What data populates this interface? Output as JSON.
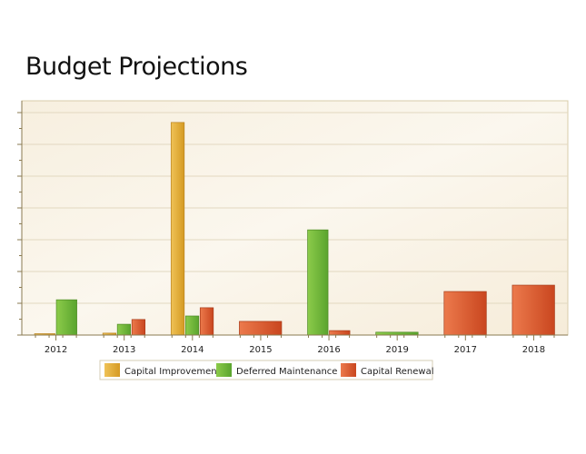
{
  "chart_data": {
    "type": "bar",
    "title": "Budget Projections",
    "xlabel": "",
    "ylabel": "",
    "ylim": [
      0,
      7.3
    ],
    "grid": true,
    "legend_position": "bottom",
    "categories": [
      "2012",
      "2013",
      "2014",
      "2015",
      "2016",
      "2019",
      "2017",
      "2018"
    ],
    "series": [
      {
        "name": "Capital Improvement",
        "color": "#e0a632",
        "values": [
          0,
          0.06,
          6.69,
          null,
          null,
          null,
          null,
          null
        ]
      },
      {
        "name": "Deferred Maintenance",
        "color": "#6cb33a",
        "values": [
          1.11,
          0.34,
          0.6,
          null,
          3.31,
          0.09,
          null,
          null
        ]
      },
      {
        "name": "Capital Renewal",
        "color": "#d9552c",
        "values": [
          null,
          0.49,
          0.86,
          0.43,
          0.14,
          null,
          1.37,
          1.57
        ]
      }
    ]
  }
}
